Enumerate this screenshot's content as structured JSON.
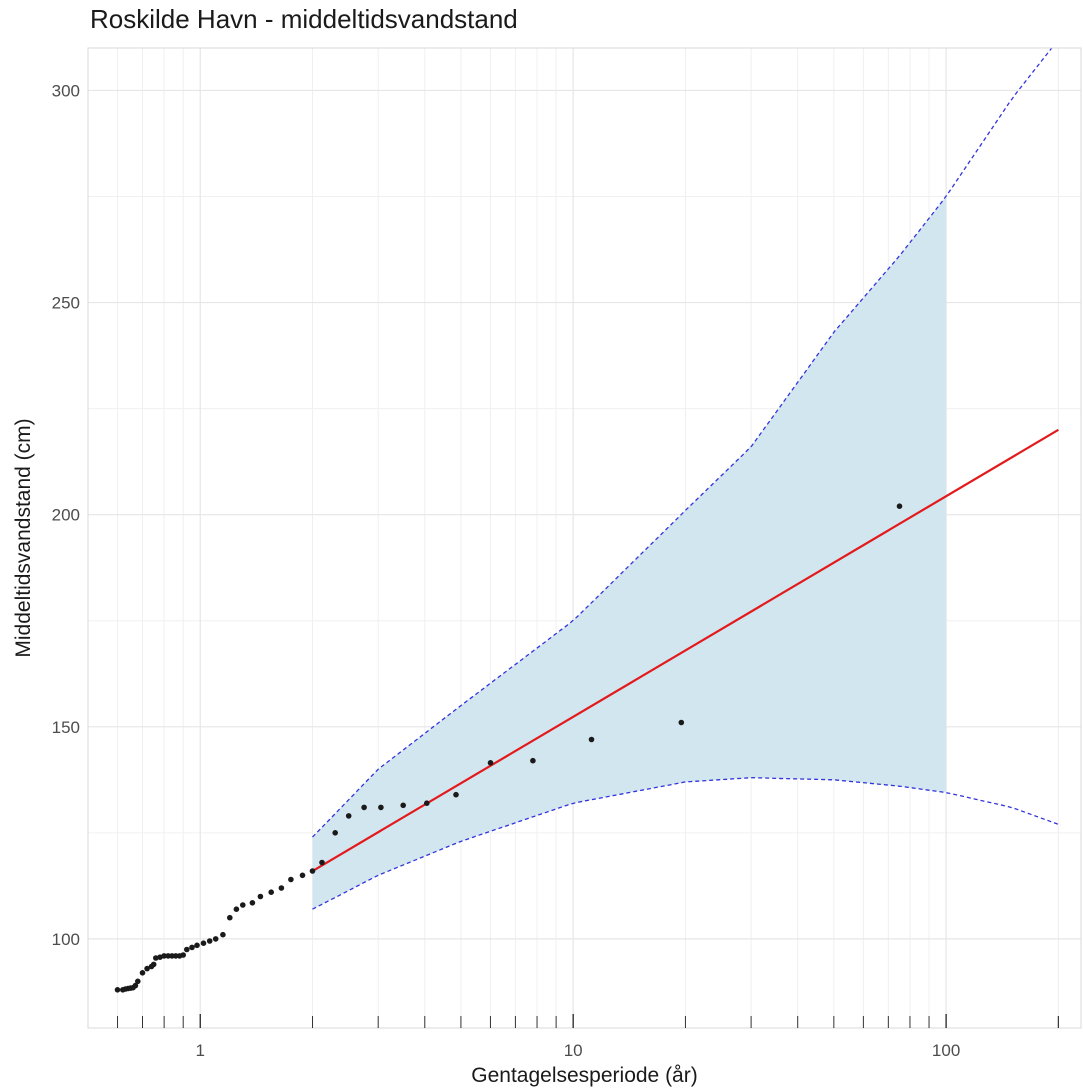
{
  "chart_data": {
    "type": "scatter",
    "title": "Roskilde Havn - middeltidsvandstand",
    "xlabel": "Gentagelsesperiode (år)",
    "ylabel": "Middeltidsvandstand (cm)",
    "x_scale": "log",
    "xlim": [
      0.5,
      230
    ],
    "ylim": [
      79,
      310
    ],
    "x_ticks": [
      1,
      10,
      100
    ],
    "x_tick_labels": [
      "1",
      "10",
      "100"
    ],
    "y_ticks": [
      100,
      150,
      200,
      250,
      300
    ],
    "y_tick_labels": [
      "100",
      "150",
      "200",
      "250",
      "300"
    ],
    "grid": true,
    "colors": {
      "points": "#1a1a1a",
      "fit_line": "#e31a1c",
      "ci_fill": "#d2e6f0",
      "ci_line": "#3333dd",
      "grid": "#e6e6e6",
      "panel_border": "#d9d9d9"
    },
    "series": [
      {
        "kind": "points",
        "x": [
          0.6,
          0.62,
          0.63,
          0.64,
          0.65,
          0.66,
          0.67,
          0.68,
          0.7,
          0.72,
          0.74,
          0.75,
          0.76,
          0.78,
          0.8,
          0.82,
          0.84,
          0.86,
          0.88,
          0.9,
          0.92,
          0.95,
          0.98,
          1.02,
          1.06,
          1.1,
          1.15,
          1.2,
          1.25,
          1.3,
          1.38,
          1.45,
          1.55,
          1.65,
          1.75,
          1.88,
          2.0,
          2.12,
          2.3,
          2.5,
          2.75,
          3.05,
          3.5,
          4.05,
          4.85,
          6.0,
          7.8,
          11.2,
          19.5,
          75
        ],
        "y": [
          88,
          88,
          88.2,
          88.3,
          88.4,
          88.5,
          89,
          90,
          92,
          93,
          93.5,
          94,
          95.5,
          95.7,
          96,
          96,
          96,
          96,
          96,
          96.2,
          97.5,
          98,
          98.5,
          99,
          99.5,
          100,
          101,
          105,
          107,
          108,
          108.5,
          110,
          111,
          112,
          114,
          115,
          116,
          118,
          125,
          129,
          131,
          131,
          131.5,
          132,
          134,
          141.5,
          142,
          147,
          151,
          202
        ]
      },
      {
        "kind": "line",
        "x": [
          2,
          200
        ],
        "y": [
          116,
          220
        ]
      },
      {
        "kind": "ci_upper",
        "x": [
          2,
          3,
          5,
          10,
          20,
          30,
          50,
          75,
          100,
          150,
          200
        ],
        "y": [
          124,
          140,
          155,
          175,
          201,
          216,
          243,
          261,
          275,
          298,
          312
        ]
      },
      {
        "kind": "ci_lower",
        "x": [
          2,
          3,
          5,
          10,
          20,
          30,
          50,
          75,
          100,
          150,
          200
        ],
        "y": [
          107,
          115,
          123,
          132,
          137,
          138,
          137.5,
          136,
          134.5,
          131,
          127
        ]
      }
    ],
    "ci_band_x_range": [
      2,
      100
    ]
  }
}
